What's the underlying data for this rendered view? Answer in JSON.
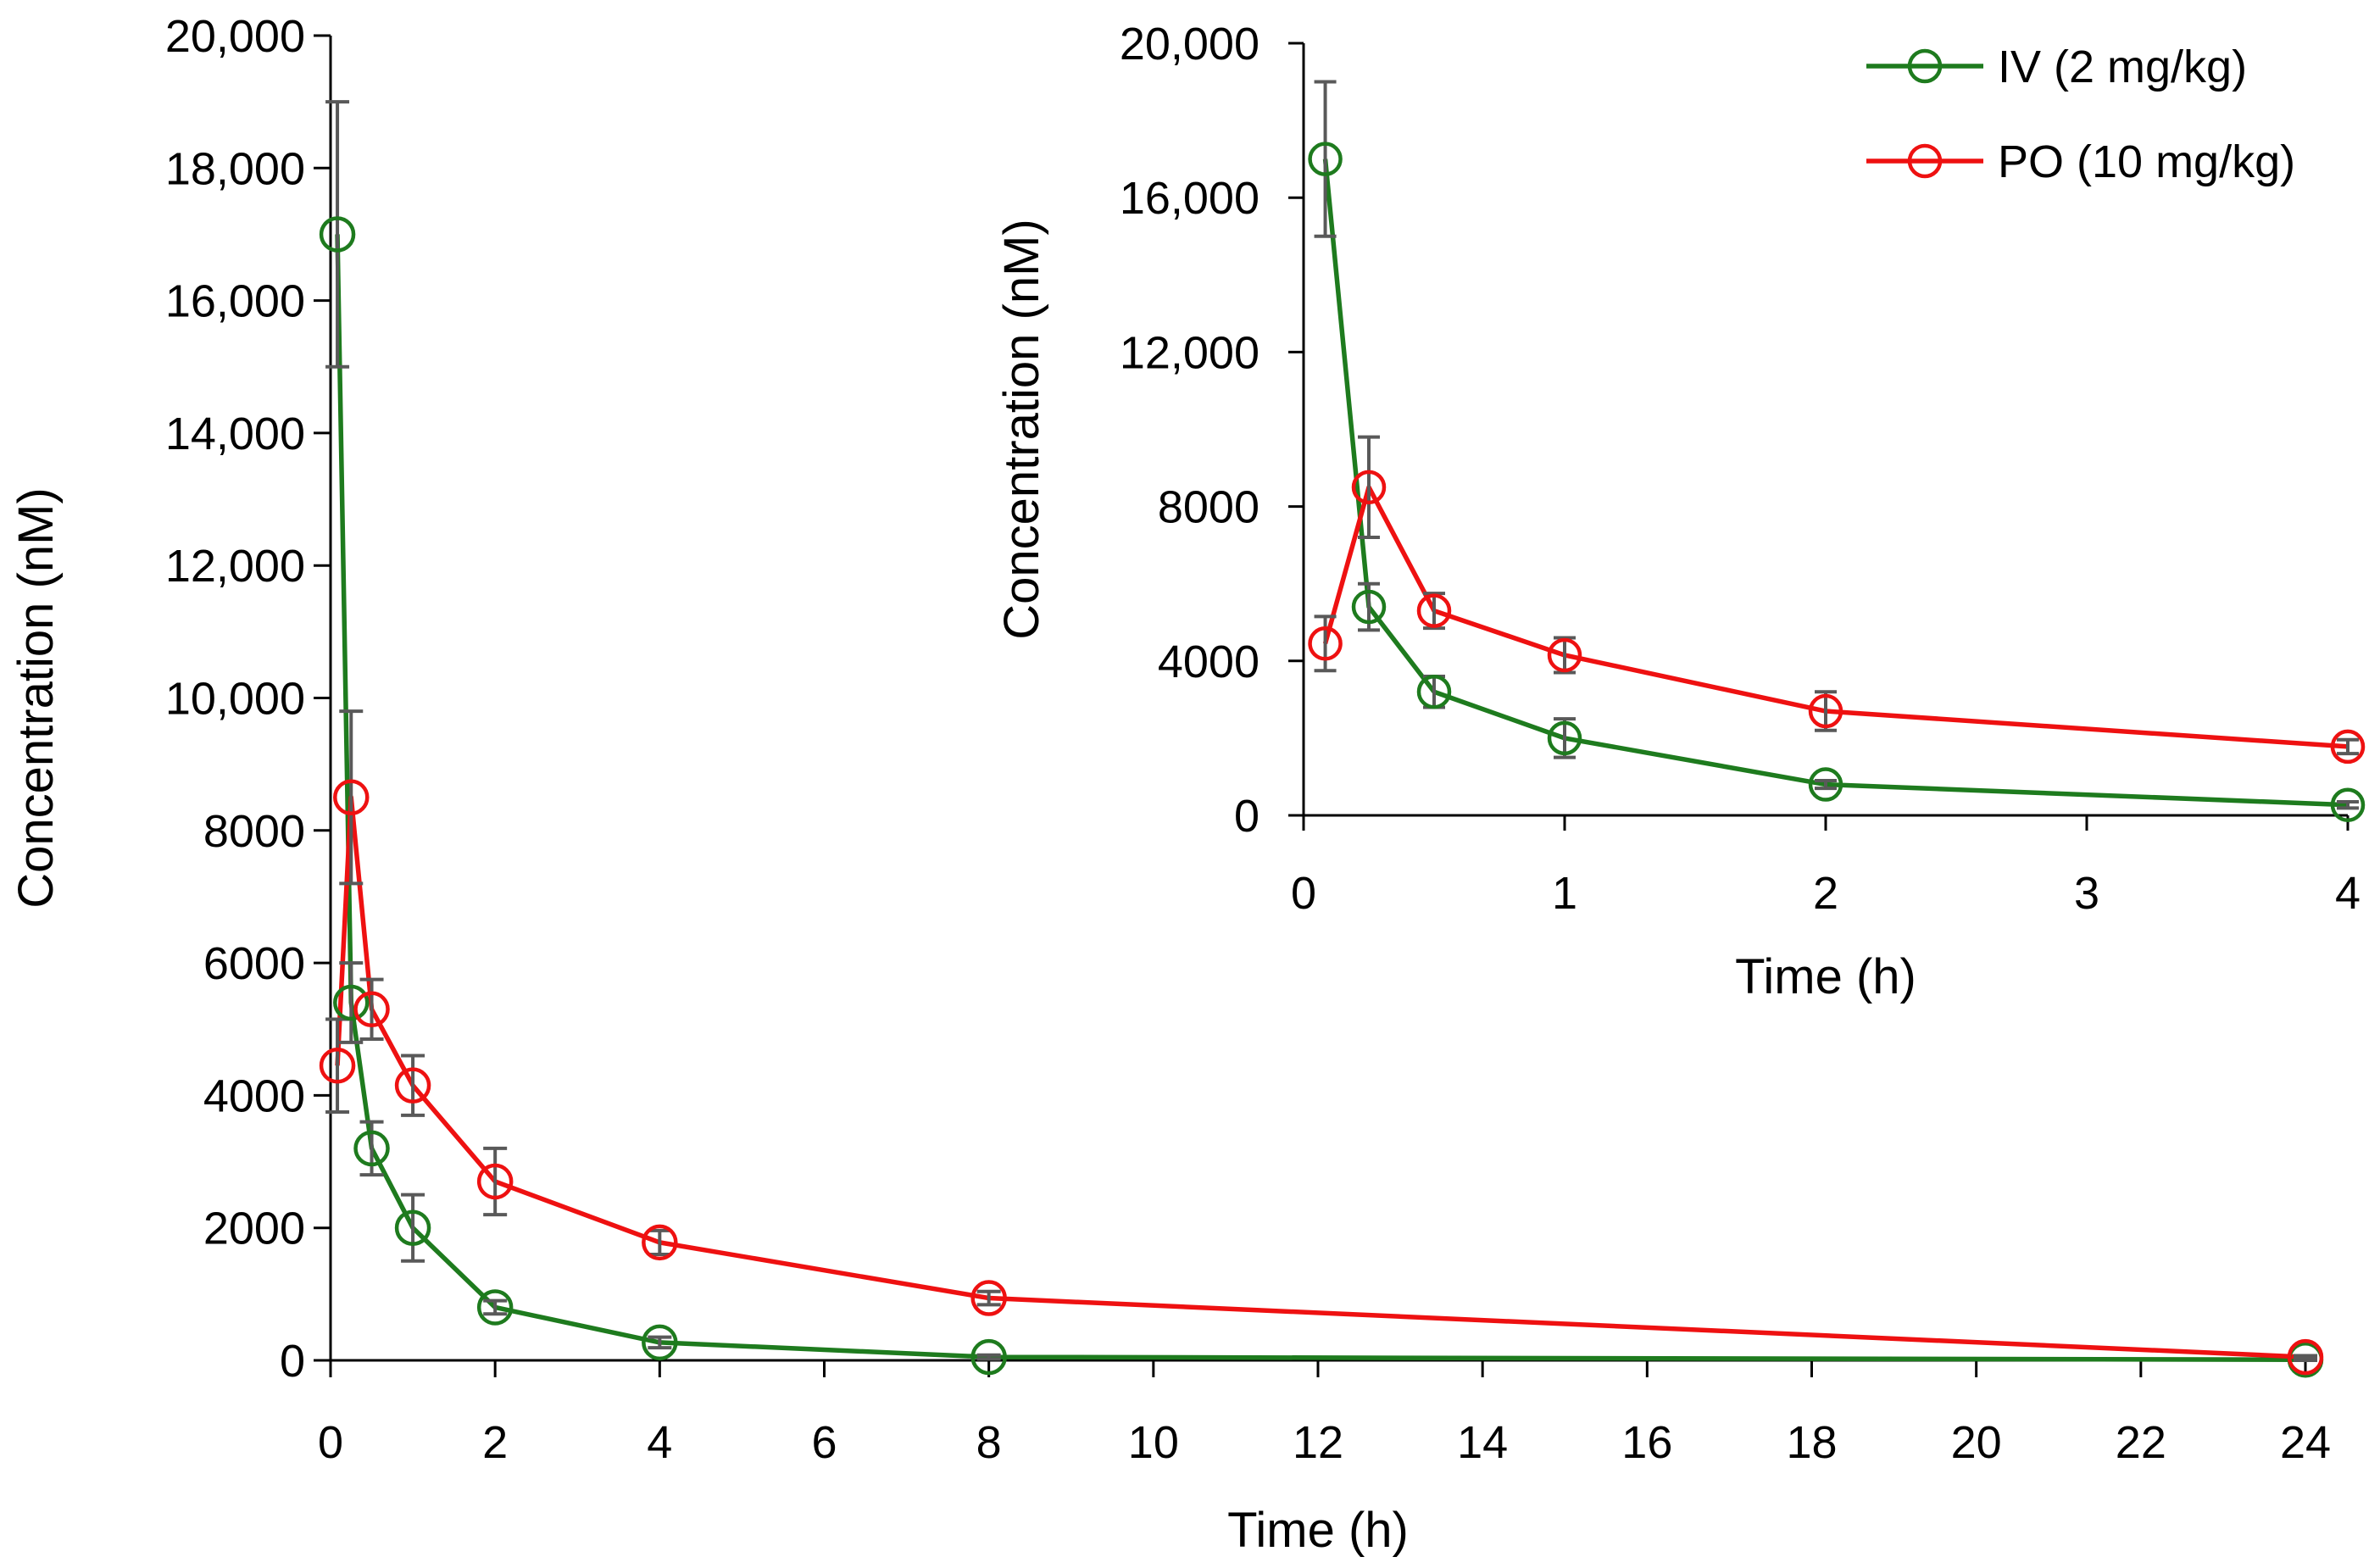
{
  "chart_data": [
    {
      "name": "main",
      "type": "line",
      "xlabel": "Time (h)",
      "ylabel": "Concentration (nM)",
      "xlim": [
        0,
        24
      ],
      "ylim": [
        0,
        20000
      ],
      "x_ticks": [
        0,
        2,
        4,
        6,
        8,
        10,
        12,
        14,
        16,
        18,
        20,
        22,
        24
      ],
      "x_tick_labels": [
        "0",
        "2",
        "4",
        "6",
        "8",
        "10",
        "12",
        "14",
        "16",
        "18",
        "20",
        "22",
        "24"
      ],
      "y_ticks": [
        0,
        2000,
        4000,
        6000,
        8000,
        10000,
        12000,
        14000,
        16000,
        18000,
        20000
      ],
      "y_tick_labels": [
        "0",
        "2000",
        "4000",
        "6000",
        "8000",
        "10,000",
        "12,000",
        "14,000",
        "16,000",
        "18,000",
        "20,000"
      ],
      "grid": false,
      "series": [
        {
          "name": "IV (2 mg/kg)",
          "color": "#1e7b1e",
          "x": [
            0.083,
            0.25,
            0.5,
            1,
            2,
            4,
            8,
            24
          ],
          "y": [
            17000,
            5400,
            3200,
            2000,
            800,
            270,
            50,
            10
          ],
          "err": [
            2000,
            600,
            400,
            500,
            100,
            80,
            30,
            10
          ]
        },
        {
          "name": "PO (10 mg/kg)",
          "color": "#ee1111",
          "x": [
            0.083,
            0.25,
            0.5,
            1,
            2,
            4,
            8,
            24
          ],
          "y": [
            4450,
            8500,
            5300,
            4150,
            2700,
            1780,
            940,
            50
          ],
          "err": [
            700,
            1300,
            450,
            450,
            500,
            180,
            100,
            20
          ]
        }
      ]
    },
    {
      "name": "inset",
      "type": "line",
      "xlabel": "Time (h)",
      "ylabel": "Concentration (nM)",
      "xlim": [
        0,
        4
      ],
      "ylim": [
        0,
        20000
      ],
      "x_ticks": [
        0,
        1,
        2,
        3,
        4
      ],
      "x_tick_labels": [
        "0",
        "1",
        "2",
        "3",
        "4"
      ],
      "y_ticks": [
        0,
        4000,
        8000,
        12000,
        16000,
        20000
      ],
      "y_tick_labels": [
        "0",
        "4000",
        "8000",
        "12,000",
        "16,000",
        "20,000"
      ],
      "grid": false,
      "legend_position": "top-right",
      "series": [
        {
          "name": "IV (2 mg/kg)",
          "color": "#1e7b1e",
          "x": [
            0.083,
            0.25,
            0.5,
            1,
            2,
            4
          ],
          "y": [
            17000,
            5400,
            3200,
            2000,
            800,
            270
          ],
          "err": [
            2000,
            600,
            400,
            500,
            100,
            80
          ]
        },
        {
          "name": "PO (10 mg/kg)",
          "color": "#ee1111",
          "x": [
            0.083,
            0.25,
            0.5,
            1,
            2,
            4
          ],
          "y": [
            4450,
            8500,
            5300,
            4150,
            2700,
            1780
          ],
          "err": [
            700,
            1300,
            450,
            450,
            500,
            180
          ]
        }
      ]
    }
  ],
  "error_bar_color": "#595959"
}
